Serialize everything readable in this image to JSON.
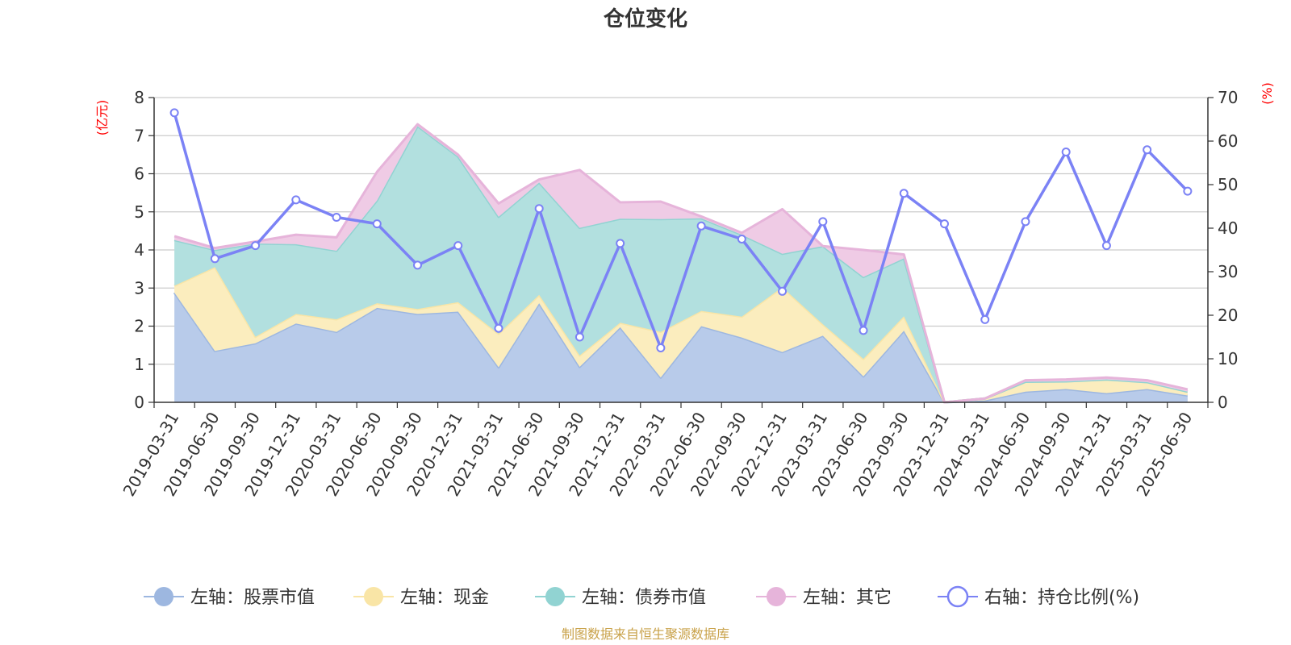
{
  "chart_data": {
    "type": "area",
    "title": "仓位变化",
    "left_unit": "(亿元)",
    "right_unit": "(%)",
    "left_ylim": [
      0,
      8
    ],
    "left_ticks": [
      0,
      1,
      2,
      3,
      4,
      5,
      6,
      7,
      8
    ],
    "right_ylim": [
      0,
      70
    ],
    "right_ticks": [
      0,
      10,
      20,
      30,
      40,
      50,
      60,
      70
    ],
    "grid": true,
    "legend_position": "bottom",
    "categories": [
      "2019-03-31",
      "2019-06-30",
      "2019-09-30",
      "2019-12-31",
      "2020-03-31",
      "2020-06-30",
      "2020-09-30",
      "2020-12-31",
      "2021-03-31",
      "2021-06-30",
      "2021-09-30",
      "2021-12-31",
      "2022-03-31",
      "2022-06-30",
      "2022-09-30",
      "2022-12-31",
      "2023-03-31",
      "2023-06-30",
      "2023-09-30",
      "2023-12-31",
      "2024-03-31",
      "2024-06-30",
      "2024-09-30",
      "2024-12-31",
      "2025-03-31",
      "2025-06-30"
    ],
    "stacked_series": [
      {
        "name": "左轴：股票市值",
        "color": "#9db7e0",
        "fill": "#b8cbea",
        "values": [
          2.88,
          1.35,
          1.55,
          2.07,
          1.85,
          2.48,
          2.32,
          2.38,
          0.92,
          2.6,
          0.93,
          1.97,
          0.65,
          2.0,
          1.7,
          1.32,
          1.75,
          0.68,
          1.88,
          0.0,
          0.05,
          0.28,
          0.35,
          0.24,
          0.35,
          0.18
        ]
      },
      {
        "name": "左轴：现金",
        "color": "#f9e5a6",
        "fill": "#fbedbe",
        "values": [
          0.18,
          2.2,
          0.17,
          0.25,
          0.33,
          0.12,
          0.13,
          0.25,
          0.88,
          0.22,
          0.3,
          0.12,
          1.2,
          0.4,
          0.55,
          1.7,
          0.3,
          0.46,
          0.38,
          0.0,
          0.05,
          0.26,
          0.2,
          0.36,
          0.18,
          0.1
        ]
      },
      {
        "name": "左轴：债券市值",
        "color": "#91d3d2",
        "fill": "#b2e0df",
        "values": [
          1.2,
          0.45,
          2.45,
          1.83,
          1.8,
          2.7,
          4.8,
          3.82,
          3.07,
          2.95,
          3.35,
          2.73,
          2.96,
          2.43,
          2.15,
          0.88,
          2.05,
          2.15,
          1.52,
          0.0,
          0.0,
          0.0,
          0.0,
          0.0,
          0.0,
          0.0
        ]
      },
      {
        "name": "左轴：其它",
        "color": "#e6b4da",
        "fill": "#efcbe5",
        "values": [
          0.1,
          0.05,
          0.05,
          0.25,
          0.35,
          0.75,
          0.05,
          0.05,
          0.35,
          0.08,
          1.52,
          0.43,
          0.46,
          0.05,
          0.05,
          1.17,
          0.0,
          0.71,
          0.1,
          0.0,
          0.0,
          0.04,
          0.05,
          0.05,
          0.05,
          0.06
        ]
      }
    ],
    "line_series": {
      "name": "右轴：持仓比例(%)",
      "color": "#7b82f5",
      "values": [
        66.5,
        33.0,
        36.0,
        46.5,
        42.5,
        41.0,
        31.5,
        36.0,
        17.0,
        44.5,
        15.0,
        36.5,
        12.5,
        40.5,
        37.5,
        25.5,
        41.5,
        16.5,
        48.0,
        41.0,
        19.0,
        41.5,
        57.5,
        36.0,
        58.0,
        48.5
      ]
    },
    "source": "制图数据来自恒生聚源数据库"
  }
}
